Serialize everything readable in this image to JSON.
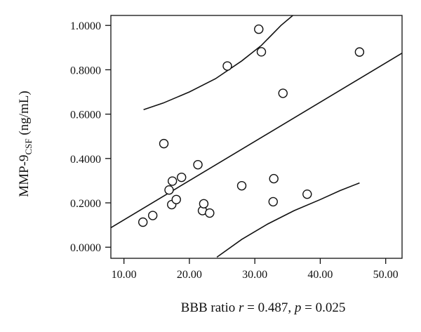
{
  "chart_data": {
    "type": "scatter",
    "title": "",
    "xlabel": {
      "prefix": "BBB ratio ",
      "r_symbol": "r",
      "r_text": " = 0.487, ",
      "p_symbol": "p",
      "p_text": " = 0.025"
    },
    "ylabel": {
      "main": "MMP-9",
      "subscript": "CSF",
      "unit": " (ng/mL)"
    },
    "xlim": [
      8.0,
      52.5
    ],
    "ylim": [
      -0.05,
      1.045
    ],
    "x_ticks": [
      10,
      20,
      30,
      40,
      50
    ],
    "x_tick_labels": [
      "10.00",
      "20.00",
      "30.00",
      "40.00",
      "50.00"
    ],
    "y_ticks": [
      0,
      0.2,
      0.4,
      0.6,
      0.8,
      1.0
    ],
    "y_tick_labels": [
      "0.0000",
      "0.2000",
      "0.4000",
      "0.6000",
      "0.8000",
      "1.0000"
    ],
    "grid": false,
    "marker": "open-circle",
    "points": [
      {
        "x": 12.9,
        "y": 0.113
      },
      {
        "x": 14.4,
        "y": 0.143
      },
      {
        "x": 16.1,
        "y": 0.467
      },
      {
        "x": 16.9,
        "y": 0.258
      },
      {
        "x": 17.3,
        "y": 0.192
      },
      {
        "x": 17.4,
        "y": 0.298
      },
      {
        "x": 18.0,
        "y": 0.215
      },
      {
        "x": 18.8,
        "y": 0.315
      },
      {
        "x": 21.3,
        "y": 0.372
      },
      {
        "x": 22.0,
        "y": 0.165
      },
      {
        "x": 22.2,
        "y": 0.196
      },
      {
        "x": 23.1,
        "y": 0.154
      },
      {
        "x": 25.8,
        "y": 0.817
      },
      {
        "x": 28.0,
        "y": 0.277
      },
      {
        "x": 30.6,
        "y": 0.983
      },
      {
        "x": 31.0,
        "y": 0.881
      },
      {
        "x": 32.8,
        "y": 0.205
      },
      {
        "x": 32.9,
        "y": 0.309
      },
      {
        "x": 34.3,
        "y": 0.694
      },
      {
        "x": 38.0,
        "y": 0.239
      },
      {
        "x": 46.0,
        "y": 0.88
      }
    ],
    "fit_line": [
      {
        "x": 8.0,
        "y": 0.088
      },
      {
        "x": 52.5,
        "y": 0.875
      }
    ],
    "upper_band": [
      {
        "x": 13.0,
        "y": 0.62
      },
      {
        "x": 16.0,
        "y": 0.65
      },
      {
        "x": 20.0,
        "y": 0.7
      },
      {
        "x": 24.0,
        "y": 0.76
      },
      {
        "x": 28.0,
        "y": 0.84
      },
      {
        "x": 31.0,
        "y": 0.91
      },
      {
        "x": 34.0,
        "y": 1.0
      },
      {
        "x": 35.8,
        "y": 1.045
      }
    ],
    "lower_band": [
      {
        "x": 24.2,
        "y": -0.045
      },
      {
        "x": 28.0,
        "y": 0.035
      },
      {
        "x": 32.0,
        "y": 0.105
      },
      {
        "x": 36.0,
        "y": 0.165
      },
      {
        "x": 40.0,
        "y": 0.215
      },
      {
        "x": 43.0,
        "y": 0.255
      },
      {
        "x": 46.0,
        "y": 0.29
      }
    ]
  }
}
